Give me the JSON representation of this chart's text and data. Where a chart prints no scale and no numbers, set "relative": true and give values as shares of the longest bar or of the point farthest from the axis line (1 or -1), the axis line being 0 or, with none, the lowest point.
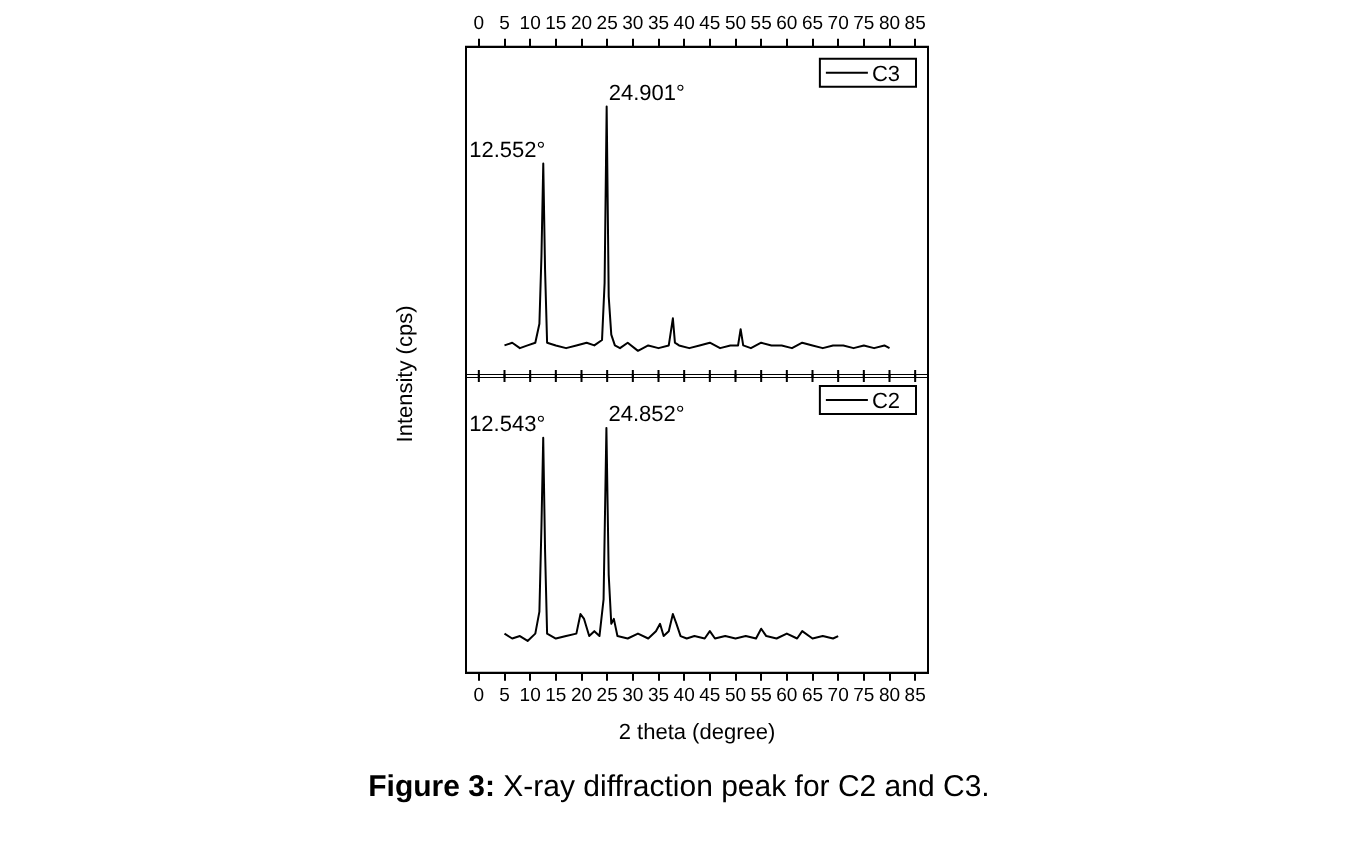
{
  "chart_data": [
    {
      "type": "line",
      "ylabel": "Intensity (cps)",
      "relative": true,
      "legend": "top right",
      "xlim": [
        -2.5,
        87.5
      ],
      "xticks": [
        0,
        5,
        10,
        15,
        20,
        25,
        30,
        35,
        40,
        45,
        50,
        55,
        60,
        65,
        70,
        75,
        80,
        85
      ],
      "x": [
        5,
        6.5,
        8,
        9.5,
        11,
        11.8,
        12.2,
        12.552,
        12.9,
        13.3,
        15,
        17,
        19,
        21,
        22.5,
        24,
        24.5,
        24.901,
        25.3,
        25.8,
        26.5,
        27.5,
        29,
        31,
        33,
        35,
        37,
        37.8,
        38.2,
        39,
        41,
        43,
        45,
        47,
        49,
        50.5,
        51,
        51.5,
        53,
        55,
        57,
        59,
        61,
        63,
        65,
        67,
        69,
        71,
        73,
        75,
        77,
        79,
        80
      ],
      "series": [
        {
          "name": "C3",
          "color": "#000000",
          "values": [
            0.12,
            0.13,
            0.11,
            0.12,
            0.13,
            0.2,
            0.45,
            0.79,
            0.4,
            0.13,
            0.12,
            0.11,
            0.12,
            0.13,
            0.12,
            0.14,
            0.35,
            1,
            0.3,
            0.16,
            0.12,
            0.11,
            0.13,
            0.1,
            0.12,
            0.11,
            0.12,
            0.22,
            0.13,
            0.12,
            0.11,
            0.12,
            0.13,
            0.11,
            0.12,
            0.12,
            0.18,
            0.12,
            0.11,
            0.13,
            0.12,
            0.12,
            0.11,
            0.13,
            0.12,
            0.11,
            0.12,
            0.12,
            0.11,
            0.12,
            0.11,
            0.12,
            0.11
          ]
        }
      ],
      "annotations": [
        {
          "text": "12.552°",
          "x": 12.552,
          "y": 0.79
        },
        {
          "text": "24.901°",
          "x": 24.901,
          "y": 1
        }
      ]
    },
    {
      "type": "line",
      "xlabel": "2 theta (degree)",
      "relative": true,
      "legend": "top right",
      "xlim": [
        -2.5,
        87.5
      ],
      "xticks": [
        0,
        5,
        10,
        15,
        20,
        25,
        30,
        35,
        40,
        45,
        50,
        55,
        60,
        65,
        70,
        75,
        80,
        85
      ],
      "x": [
        5,
        6.5,
        8,
        9.5,
        11,
        11.8,
        12.2,
        12.543,
        12.9,
        13.3,
        15,
        17,
        19,
        19.8,
        20.5,
        21.5,
        22.5,
        23.5,
        24.3,
        24.852,
        25.3,
        25.8,
        26.3,
        27,
        29,
        31,
        33,
        34.5,
        35.3,
        36,
        37,
        37.8,
        38.5,
        39.3,
        40.5,
        42,
        44,
        45,
        46,
        48,
        50,
        52,
        54,
        55,
        56,
        58,
        60,
        62,
        63,
        65,
        67,
        69,
        70
      ],
      "series": [
        {
          "name": "C2",
          "color": "#000000",
          "values": [
            0.16,
            0.14,
            0.15,
            0.13,
            0.16,
            0.25,
            0.6,
            0.96,
            0.5,
            0.16,
            0.14,
            0.15,
            0.16,
            0.24,
            0.22,
            0.15,
            0.17,
            0.15,
            0.3,
            1,
            0.4,
            0.2,
            0.22,
            0.15,
            0.14,
            0.16,
            0.14,
            0.17,
            0.2,
            0.15,
            0.17,
            0.24,
            0.2,
            0.15,
            0.14,
            0.15,
            0.14,
            0.17,
            0.14,
            0.15,
            0.14,
            0.15,
            0.14,
            0.18,
            0.15,
            0.14,
            0.16,
            0.14,
            0.17,
            0.14,
            0.15,
            0.14,
            0.15
          ]
        }
      ],
      "annotations": [
        {
          "text": "12.543°",
          "x": 12.543,
          "y": 0.96
        },
        {
          "text": "24.852°",
          "x": 24.852,
          "y": 1
        },
        "Figure 3: X-ray diffraction peak for C2 and C3."
      ]
    }
  ]
}
